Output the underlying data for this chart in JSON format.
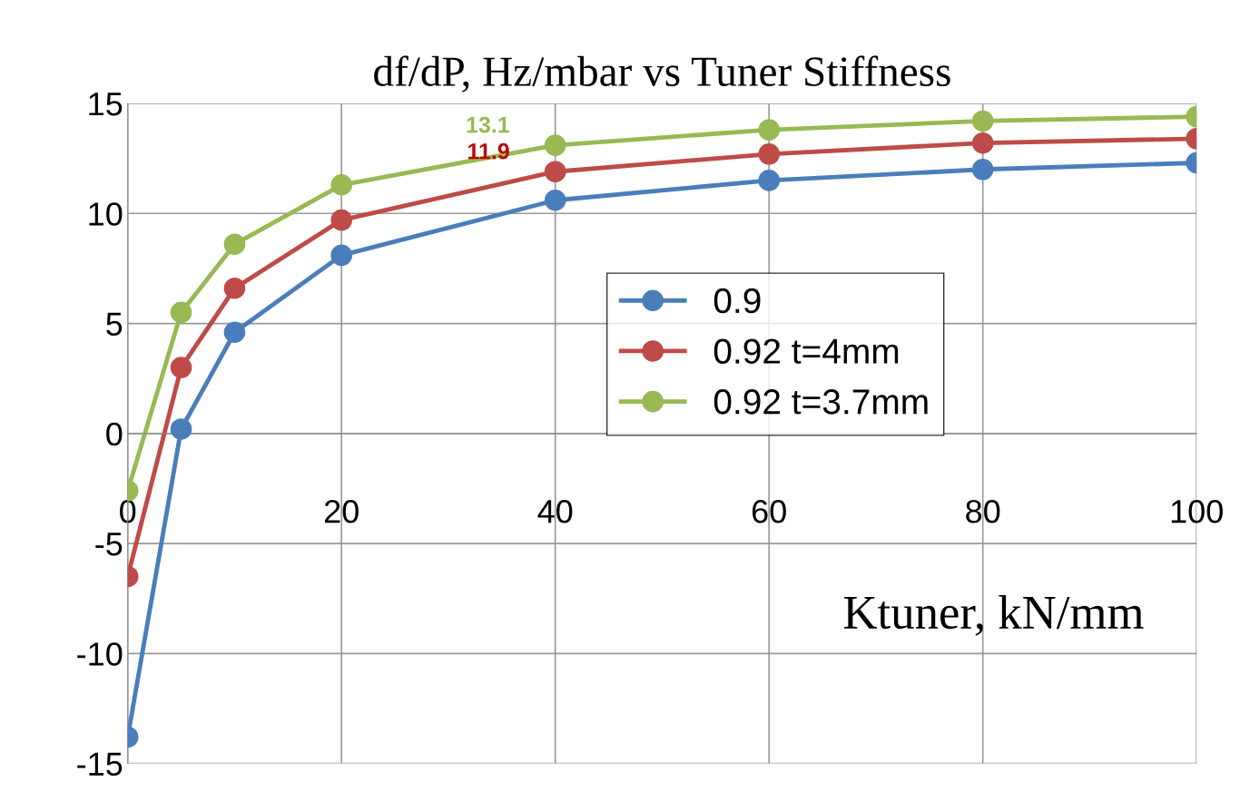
{
  "chart_data": {
    "type": "line",
    "title": "df/dP, Hz/mbar vs Tuner Stiffness",
    "xlabel": "Ktuner, kN/mm",
    "x": [
      0,
      5,
      10,
      20,
      40,
      60,
      80,
      100
    ],
    "series": [
      {
        "name": "0.9",
        "color": "#4a7ebb",
        "values": [
          -13.8,
          0.2,
          4.6,
          8.1,
          10.6,
          11.5,
          12.0,
          12.3
        ]
      },
      {
        "name": "0.92 t=4mm",
        "color": "#be4b48",
        "values": [
          -6.5,
          3.0,
          6.6,
          9.7,
          11.9,
          12.7,
          13.2,
          13.4
        ]
      },
      {
        "name": "0.92 t=3.7mm",
        "color": "#98b954",
        "values": [
          -2.6,
          5.5,
          8.6,
          11.3,
          13.1,
          13.8,
          14.2,
          14.4
        ]
      }
    ],
    "annotations": [
      {
        "text": "13.1",
        "x": 40,
        "y": 13.1
      },
      {
        "text": "11.9",
        "x": 40,
        "y": 11.9
      }
    ],
    "xlim": [
      0,
      100
    ],
    "xticks": [
      0,
      20,
      40,
      60,
      80,
      100
    ],
    "ylim": [
      -15,
      15
    ],
    "yticks": [
      -15,
      -10,
      -5,
      0,
      5,
      10,
      15
    ],
    "grid": true,
    "legend": "right",
    "marker": "circle",
    "line_style": "solid"
  }
}
